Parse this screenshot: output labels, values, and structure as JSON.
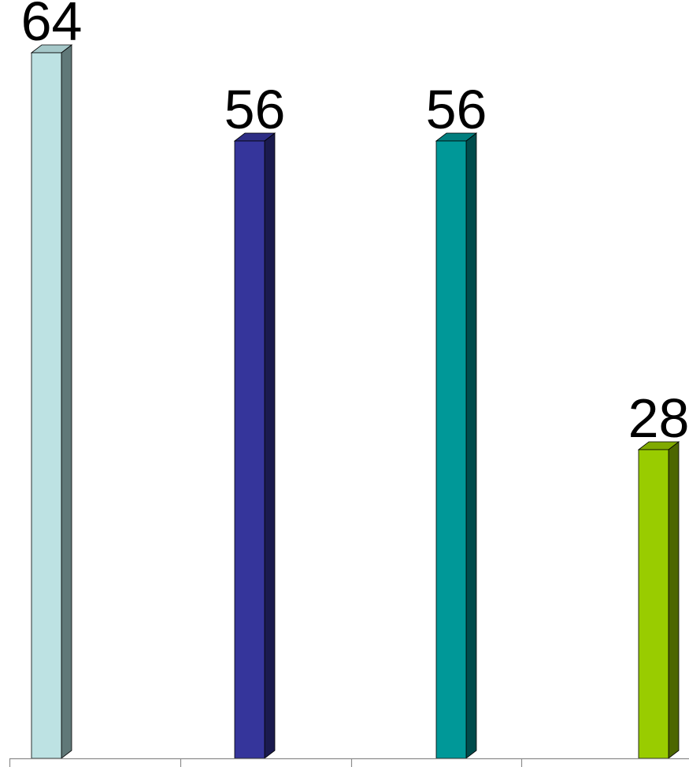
{
  "chart_data": {
    "type": "bar",
    "style": "3d-column",
    "categories": [
      "",
      "",
      "",
      ""
    ],
    "series": [
      {
        "values": [
          64,
          56,
          56,
          28
        ],
        "colors": [
          "#BDE2E3",
          "#35359B",
          "#009898",
          "#99CC00"
        ],
        "side_colors": [
          "#607878",
          "#1A1A4E",
          "#004C4C",
          "#4C6600"
        ],
        "top_colors": [
          "#A6C8C9",
          "#2D2D85",
          "#007E7E",
          "#80AA00"
        ]
      }
    ],
    "data_labels": [
      "64",
      "56",
      "56",
      "28"
    ],
    "title": "",
    "xlabel": "",
    "ylabel": "",
    "ylim": [
      0,
      70
    ],
    "grid": false,
    "legend": "none",
    "axis_color": "#8C8C8C"
  }
}
